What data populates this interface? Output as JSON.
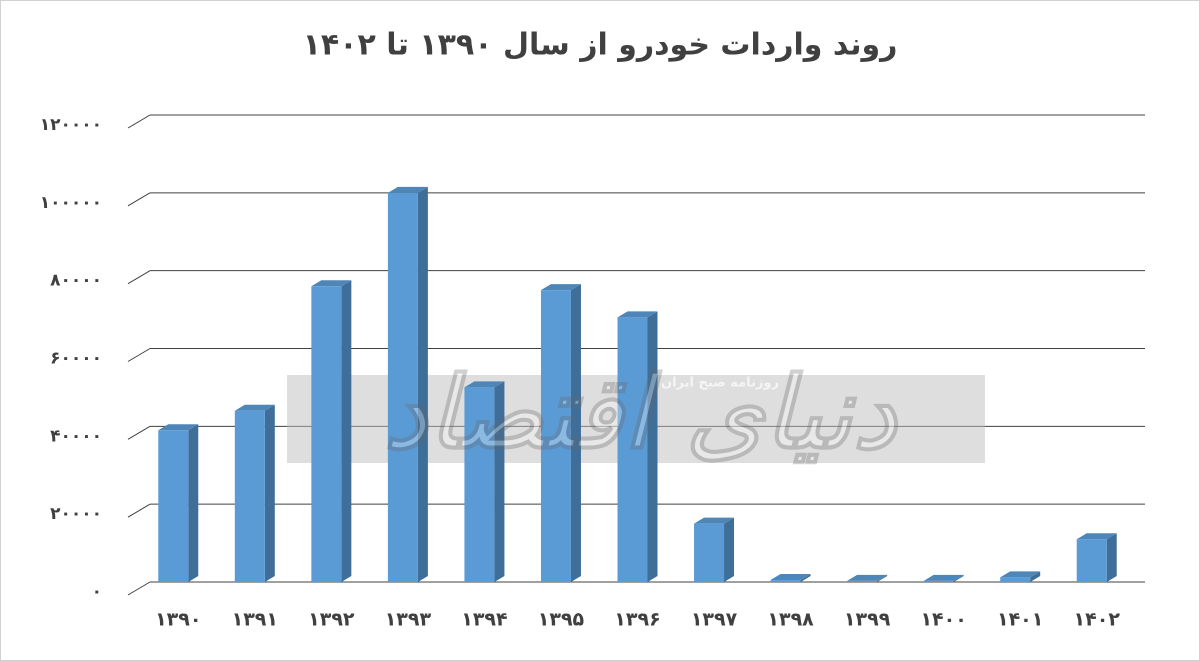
{
  "chart_data": {
    "type": "bar3d",
    "title": "روند واردات خودرو از سال ۱۳۹۰ تا ۱۴۰۲",
    "categories": [
      "۱۳۹۰",
      "۱۳۹۱",
      "۱۳۹۲",
      "۱۳۹۳",
      "۱۳۹۴",
      "۱۳۹۵",
      "۱۳۹۶",
      "۱۳۹۷",
      "۱۳۹۸",
      "۱۳۹۹",
      "۱۴۰۰",
      "۱۴۰۱",
      "۱۴۰۲"
    ],
    "values": [
      39000,
      44000,
      76000,
      100000,
      50000,
      75000,
      68000,
      15000,
      500,
      300,
      300,
      1200,
      11000
    ],
    "color": "#5b9bd5",
    "ylim": [
      0,
      120000
    ],
    "yticks": [
      {
        "value": 0,
        "label": "۰"
      },
      {
        "value": 20000,
        "label": "۲۰۰۰۰"
      },
      {
        "value": 40000,
        "label": "۴۰۰۰۰"
      },
      {
        "value": 60000,
        "label": "۶۰۰۰۰"
      },
      {
        "value": 80000,
        "label": "۸۰۰۰۰"
      },
      {
        "value": 100000,
        "label": "۱۰۰۰۰۰"
      },
      {
        "value": 120000,
        "label": "۱۲۰۰۰۰"
      }
    ],
    "grid": true,
    "watermark": [
      "دنیای اقتصاد",
      "روزنامه صبح ایران"
    ]
  }
}
